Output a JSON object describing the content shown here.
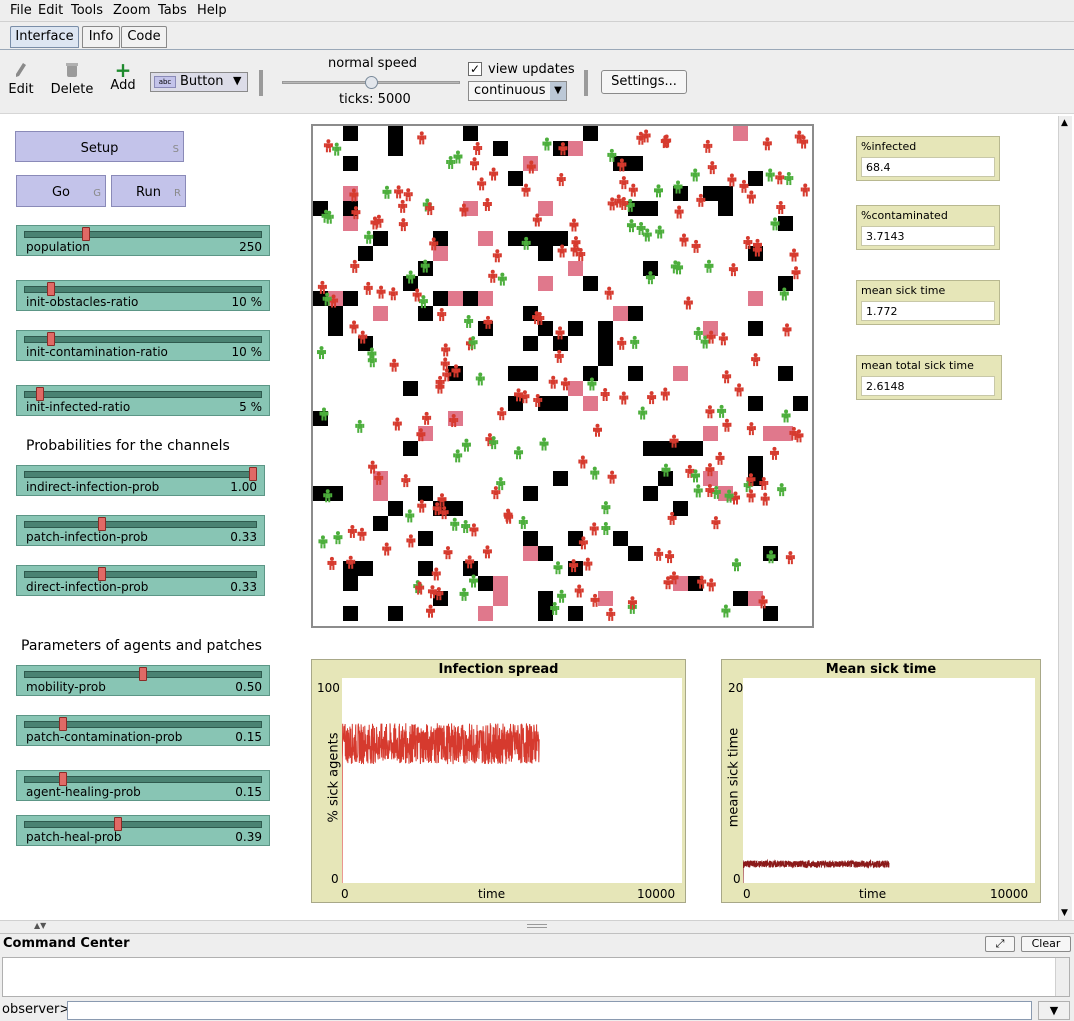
{
  "menu": [
    "File",
    "Edit",
    "Tools",
    "Zoom",
    "Tabs",
    "Help"
  ],
  "tabs": [
    "Interface",
    "Info",
    "Code"
  ],
  "toolbar": {
    "edit": "Edit",
    "delete": "Delete",
    "add": "Add",
    "widget_type": "Button",
    "speed_label": "normal speed",
    "ticks_label": "ticks: 5000",
    "speed_level": 0.5,
    "view_updates_label": "view updates",
    "view_updates_checked": true,
    "update_mode": "continuous",
    "settings": "Settings..."
  },
  "buttons": {
    "setup": "Setup",
    "setup_key": "S",
    "go": "Go",
    "go_key": "G",
    "run": "Run",
    "run_key": "R"
  },
  "sliders": [
    {
      "name": "population",
      "value": "250",
      "fraction": 0.25
    },
    {
      "name": "init-obstacles-ratio",
      "value": "10 %",
      "fraction": 0.1
    },
    {
      "name": "init-contamination-ratio",
      "value": "10 %",
      "fraction": 0.1
    },
    {
      "name": "init-infected-ratio",
      "value": "5 %",
      "fraction": 0.05
    },
    {
      "name": "indirect-infection-prob",
      "value": "1.00",
      "fraction": 1.0
    },
    {
      "name": "patch-infection-prob",
      "value": "0.33",
      "fraction": 0.33
    },
    {
      "name": "direct-infection-prob",
      "value": "0.33",
      "fraction": 0.33
    },
    {
      "name": "mobility-prob",
      "value": "0.50",
      "fraction": 0.5
    },
    {
      "name": "patch-contamination-prob",
      "value": "0.15",
      "fraction": 0.15
    },
    {
      "name": "agent-healing-prob",
      "value": "0.15",
      "fraction": 0.15
    },
    {
      "name": "patch-heal-prob",
      "value": "0.39",
      "fraction": 0.39
    }
  ],
  "notes": {
    "channels": "Probabilities for the channels",
    "params": "Parameters of agents and patches"
  },
  "monitors": [
    {
      "label": "%infected",
      "value": "68.4"
    },
    {
      "label": "%contaminated",
      "value": "3.7143"
    },
    {
      "label": "mean sick time",
      "value": "1.772"
    },
    {
      "label": "mean total sick time",
      "value": "2.6148"
    }
  ],
  "plots": [
    {
      "title": "Infection spread",
      "xlabel": "time",
      "ylabel": "% sick agents",
      "xmin": "0",
      "xmax": "10000",
      "ymin": "0",
      "ymax": "100"
    },
    {
      "title": "Mean sick time",
      "xlabel": "time",
      "ylabel": "mean sick time",
      "xmin": "0",
      "xmax": "10000",
      "ymin": "0",
      "ymax": "20"
    }
  ],
  "chart_data": [
    {
      "type": "line",
      "title": "Infection spread",
      "xlabel": "time",
      "ylabel": "% sick agents",
      "xlim": [
        0,
        10000
      ],
      "ylim": [
        0,
        100
      ],
      "series": [
        {
          "color": "#d63a2e",
          "x_range": [
            0,
            5800
          ],
          "approx_mean": 68,
          "approx_band": [
            58,
            78
          ]
        }
      ]
    },
    {
      "type": "line",
      "title": "Mean sick time",
      "xlabel": "time",
      "ylabel": "mean sick time",
      "xlim": [
        0,
        10000
      ],
      "ylim": [
        0,
        20
      ],
      "series": [
        {
          "color": "#8b1a1a",
          "x_range": [
            0,
            5000
          ],
          "approx_mean": 1.8,
          "approx_band": [
            1.5,
            2.2
          ]
        }
      ]
    }
  ],
  "colors": {
    "healthy": "#4cae3c",
    "sick": "#d63a2e",
    "contaminated": "#e0788c",
    "obstacle": "#000000",
    "slider": "#88c5b4",
    "button": "#c3c3ea",
    "monitor": "#e6e6b8"
  },
  "command_center": {
    "title": "Command Center",
    "clear": "Clear",
    "prompt": "observer>"
  }
}
